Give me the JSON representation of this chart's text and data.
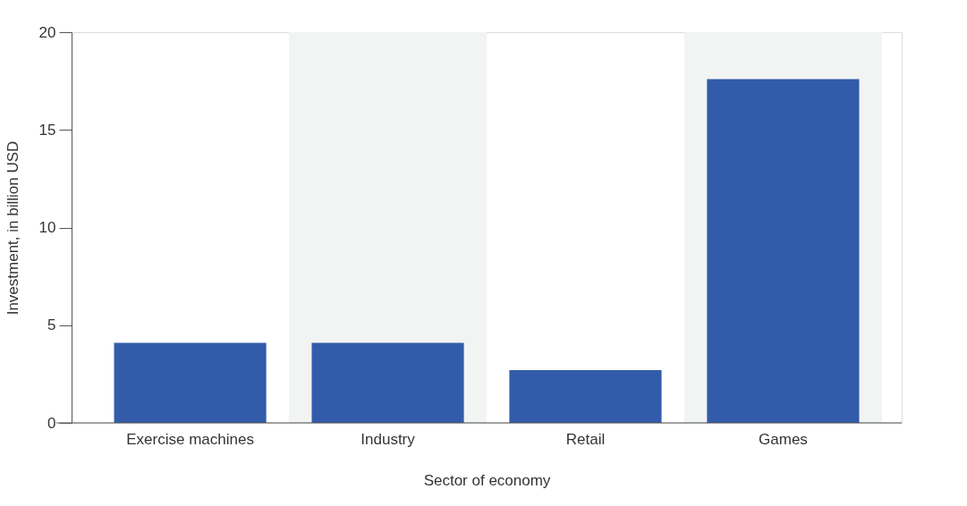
{
  "chart_data": {
    "type": "bar",
    "xlabel": "Sector of economy",
    "ylabel": "Investment, in billion USD",
    "categories": [
      "Exercise machines",
      "Industry",
      "Retail",
      "Games"
    ],
    "values": [
      4.1,
      4.1,
      2.7,
      17.6
    ],
    "color": "#325caa",
    "ylim": [
      0,
      20
    ],
    "yticks": [
      0,
      5,
      10,
      15,
      20
    ],
    "grid": false,
    "bands": [
      {
        "axis": "x",
        "from": "Industry",
        "to": "Industry",
        "color": "#f2f3f3"
      },
      {
        "axis": "x",
        "from": "Games",
        "to": "Games",
        "color": "#f2f3f3"
      }
    ]
  }
}
